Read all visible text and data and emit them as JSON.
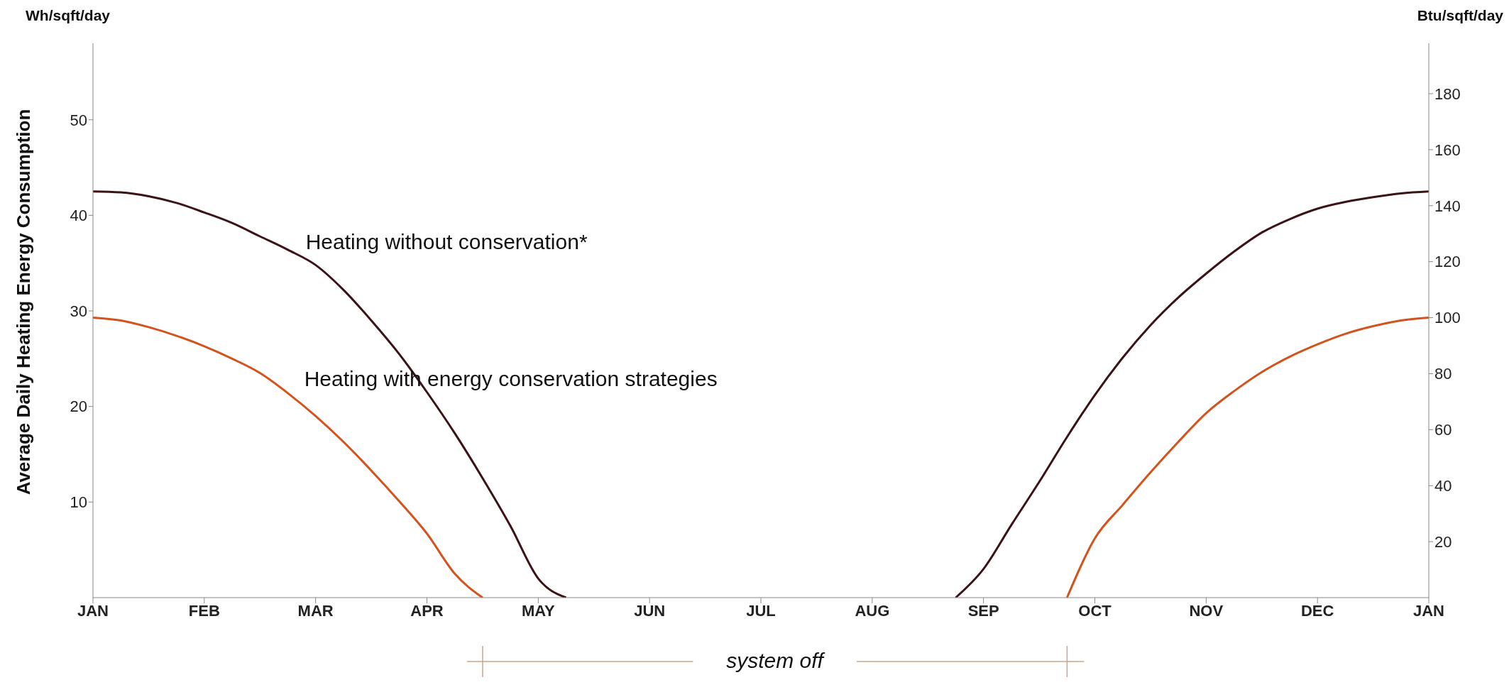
{
  "chart_data": {
    "type": "line",
    "ylabel": "Average Daily Heating Energy Consumption",
    "y2label": "Btu/sqft/day",
    "categories": [
      "JAN",
      null,
      null,
      null,
      "FEB",
      null,
      null,
      null,
      "MAR",
      null,
      null,
      null,
      "APR",
      null,
      null,
      null,
      "MAY",
      null,
      null,
      null,
      "JUN",
      null,
      null,
      null,
      "JUL",
      null,
      null,
      null,
      "AUG",
      null,
      null,
      null,
      "SEP",
      null,
      null,
      null,
      "OCT",
      null,
      null,
      null,
      "NOV",
      null,
      null,
      null,
      "DEC",
      null,
      null,
      null,
      "JAN"
    ],
    "ylim": [
      0,
      58
    ],
    "yticks": [
      10,
      20,
      30,
      40,
      50
    ],
    "y2lim": [
      0,
      198
    ],
    "y2ticks": [
      20,
      40,
      60,
      80,
      100,
      120,
      140,
      160,
      180
    ],
    "marker": "none",
    "line_style": "solid",
    "series": [
      {
        "name": "Heating without conservation*",
        "color": "#3b1216",
        "values": [
          42.5,
          42.4,
          42.0,
          41.3,
          40.3,
          39.2,
          37.8,
          36.4,
          34.8,
          32.2,
          29.0,
          25.5,
          21.5,
          17.2,
          12.5,
          7.5,
          2.0,
          0,
          null,
          null,
          null,
          null,
          null,
          null,
          null,
          null,
          null,
          null,
          null,
          null,
          null,
          0,
          3.0,
          7.6,
          12.1,
          16.8,
          21.2,
          25.1,
          28.5,
          31.4,
          33.9,
          36.2,
          38.2,
          39.6,
          40.7,
          41.4,
          41.9,
          42.3,
          42.5
        ]
      },
      {
        "name": "Heating with energy conservation strategies",
        "color": "#d4521c",
        "values": [
          29.3,
          29.0,
          28.3,
          27.4,
          26.3,
          25.0,
          23.5,
          21.4,
          19.0,
          16.3,
          13.3,
          10.1,
          6.7,
          2.5,
          0,
          null,
          null,
          null,
          null,
          null,
          null,
          null,
          null,
          null,
          null,
          null,
          null,
          null,
          null,
          null,
          null,
          null,
          null,
          null,
          null,
          0,
          6.2,
          9.7,
          13.1,
          16.3,
          19.3,
          21.6,
          23.6,
          25.2,
          26.5,
          27.6,
          28.4,
          29.0,
          29.3
        ]
      }
    ],
    "annotations": [
      "Wh/sqft/day",
      "system off"
    ]
  }
}
